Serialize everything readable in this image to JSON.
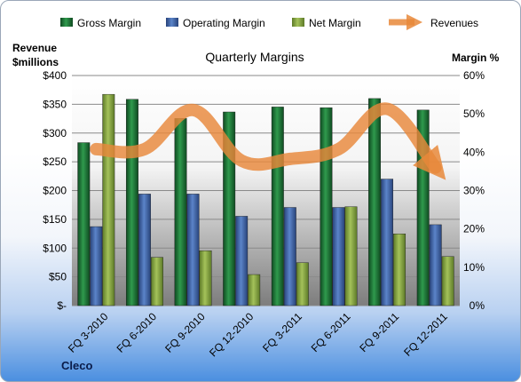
{
  "chart_data": {
    "type": "bar+line",
    "title": "Quarterly Margins",
    "left_axis_label": [
      "Revenue",
      "$millions"
    ],
    "right_axis_label": "Margin %",
    "categories": [
      "FQ 3-2010",
      "FQ 6-2010",
      "FQ 9-2010",
      "FQ 12-2010",
      "FQ 3-2011",
      "FQ 6-2011",
      "FQ 9-2011",
      "FQ 12-2011"
    ],
    "left_axis": {
      "min": 0,
      "max": 400,
      "step": 50,
      "ticks": [
        "$-",
        "$50",
        "$100",
        "$150",
        "$200",
        "$250",
        "$300",
        "$350",
        "$400"
      ]
    },
    "right_axis": {
      "min": 0,
      "max": 60,
      "step": 10,
      "ticks": [
        "0%",
        "10%",
        "20%",
        "30%",
        "40%",
        "50%",
        "60%"
      ]
    },
    "series": [
      {
        "name": "Gross Margin",
        "type": "bar",
        "axis": "right",
        "color": "#1e6b35",
        "values": [
          42.5,
          53.8,
          48.8,
          50.5,
          51.8,
          51.6,
          54.0,
          51.0
        ]
      },
      {
        "name": "Operating Margin",
        "type": "bar",
        "axis": "right",
        "color": "#3d5f9e",
        "values": [
          20.6,
          29.1,
          29.1,
          23.3,
          25.6,
          25.6,
          33.0,
          21.1
        ]
      },
      {
        "name": "Net Margin",
        "type": "bar",
        "axis": "right",
        "color": "#7e9e3d",
        "values": [
          55.1,
          12.6,
          14.3,
          8.1,
          11.2,
          25.8,
          18.7,
          12.8
        ]
      },
      {
        "name": "Revenues",
        "type": "line",
        "axis": "left",
        "color": "#e8883a",
        "values": [
          272,
          272,
          340,
          252,
          255,
          272,
          342,
          240
        ]
      }
    ],
    "legend_position": "top",
    "gridlines": true
  },
  "footer": {
    "company": "Cleco"
  }
}
